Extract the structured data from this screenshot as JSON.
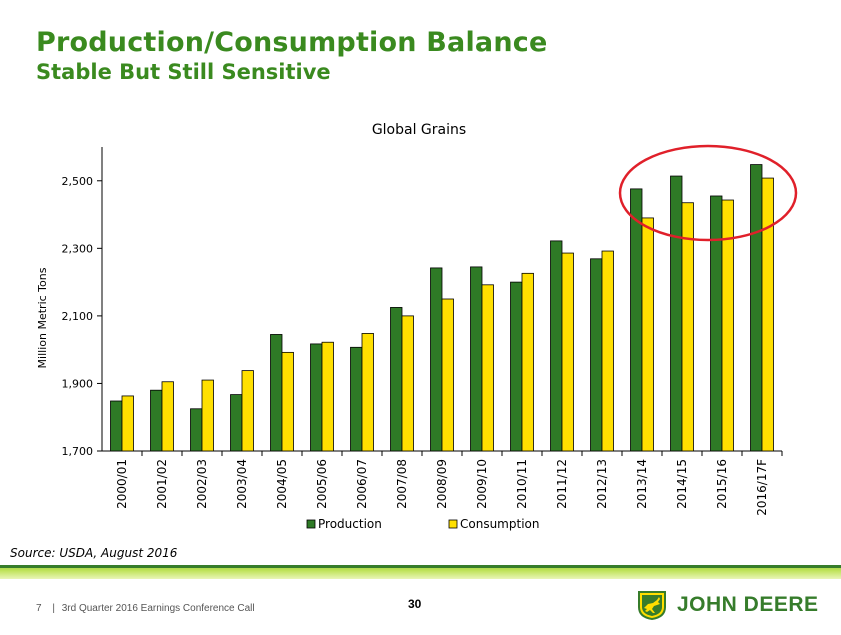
{
  "header": {
    "title": "Production/Consumption Balance",
    "subtitle": "Stable But Still Sensitive"
  },
  "chart_data": {
    "type": "bar",
    "title": "Global Grains",
    "xlabel": "",
    "ylabel": "Million Metric Tons",
    "ylim": [
      1700,
      2600
    ],
    "yticks": [
      1700,
      1900,
      2100,
      2300,
      2500
    ],
    "ytick_labels": [
      "1,700",
      "1,900",
      "2,100",
      "2,300",
      "2,500"
    ],
    "categories": [
      "2000/01",
      "2001/02",
      "2002/03",
      "2003/04",
      "2004/05",
      "2005/06",
      "2006/07",
      "2007/08",
      "2008/09",
      "2009/10",
      "2010/11",
      "2011/12",
      "2012/13",
      "2013/14",
      "2014/15",
      "2015/16",
      "2016/17F"
    ],
    "series": [
      {
        "name": "Production",
        "color": "#2e7a26",
        "values": [
          1848,
          1880,
          1825,
          1867,
          2045,
          2017,
          2007,
          2125,
          2242,
          2245,
          2200,
          2322,
          2269,
          2476,
          2514,
          2455,
          2548
        ]
      },
      {
        "name": "Consumption",
        "color": "#ffe000",
        "values": [
          1863,
          1905,
          1910,
          1938,
          1992,
          2022,
          2048,
          2100,
          2150,
          2192,
          2226,
          2286,
          2292,
          2390,
          2435,
          2443,
          2508
        ]
      }
    ],
    "legend_position": "bottom",
    "annotation": "red ellipse highlighting 2013/14 through 2016/17F"
  },
  "source": "Source: USDA, August 2016",
  "footer": {
    "slide_number": "7",
    "separator": "|",
    "event": "3rd Quarter 2016 Earnings Conference Call",
    "page": "30",
    "brand": "JOHN DEERE"
  },
  "colors": {
    "title_green": "#3a8a1f",
    "brand_green": "#367c2b",
    "brand_yellow": "#ffde00",
    "highlight_red": "#e0202a"
  }
}
